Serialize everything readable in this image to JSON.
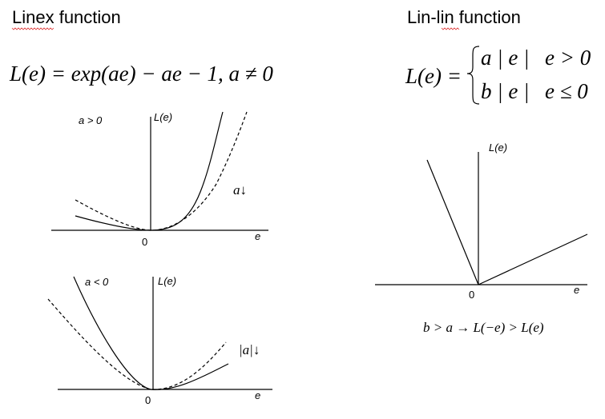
{
  "linex": {
    "title": "Linex function",
    "formula": "L(e) = exp(ae) − ae − 1,    a ≠ 0",
    "top_plot": {
      "condition": "a > 0",
      "y_axis": "L(e)",
      "x_axis": "e",
      "origin": "0",
      "annotation": "a↓"
    },
    "bottom_plot": {
      "condition": "a < 0",
      "y_axis": "L(e)",
      "x_axis": "e",
      "origin": "0",
      "annotation": "|a|↓"
    }
  },
  "linlin": {
    "title": "Lin-lin function",
    "formula_lhs": "L(e) =",
    "case1_expr": "a | e |",
    "case1_cond": "e > 0",
    "case2_expr": "b | e |",
    "case2_cond": "e ≤ 0",
    "y_axis": "L(e)",
    "x_axis": "e",
    "origin": "0",
    "note": "b > a → L(−e) > L(e)"
  }
}
